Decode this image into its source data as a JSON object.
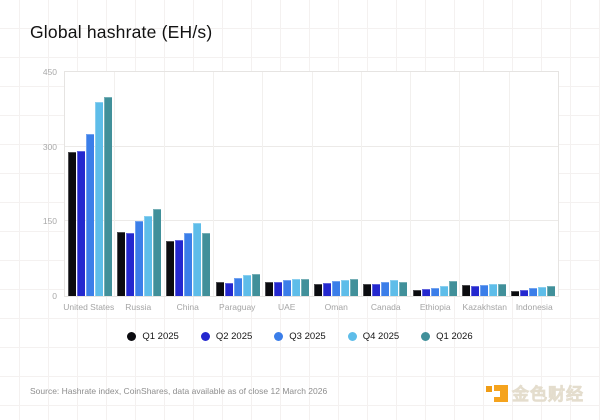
{
  "title": "Global hashrate (EH/s)",
  "chart_data": {
    "type": "bar",
    "title": "Global hashrate (EH/s)",
    "xlabel": "",
    "ylabel": "",
    "ylim": [
      0,
      450
    ],
    "yticks": [
      0,
      150,
      300,
      450
    ],
    "grid": "horizontal lines at yticks, faint vertical category separators",
    "legend_position": "bottom center",
    "categories": [
      "United States",
      "Russia",
      "China",
      "Paraguay",
      "UAE",
      "Oman",
      "Canada",
      "Ethiopia",
      "Kazakhstan",
      "Indonesia"
    ],
    "series": [
      {
        "name": "Q1 2025",
        "color": "#0b0b0f",
        "values": [
          290,
          128,
          111,
          28,
          28,
          25,
          25,
          13,
          22,
          10
        ]
      },
      {
        "name": "Q2 2025",
        "color": "#2428cf",
        "values": [
          292,
          126,
          113,
          26,
          28,
          27,
          25,
          14,
          21,
          12
        ]
      },
      {
        "name": "Q3 2025",
        "color": "#3b7ee9",
        "values": [
          325,
          150,
          126,
          36,
          33,
          30,
          28,
          17,
          22,
          16
        ]
      },
      {
        "name": "Q4 2025",
        "color": "#5ebde9",
        "values": [
          390,
          161,
          146,
          42,
          34,
          32,
          32,
          20,
          24,
          19
        ]
      },
      {
        "name": "Q1 2026",
        "color": "#41909a",
        "values": [
          400,
          175,
          126,
          45,
          34,
          34,
          29,
          30,
          24,
          21
        ]
      }
    ]
  },
  "footer": {
    "source": "Source: Hashrate index, CoinShares, data available as of close 12 March 2026",
    "brand_text": "金色财经",
    "brand_color": "#f5a31d"
  }
}
